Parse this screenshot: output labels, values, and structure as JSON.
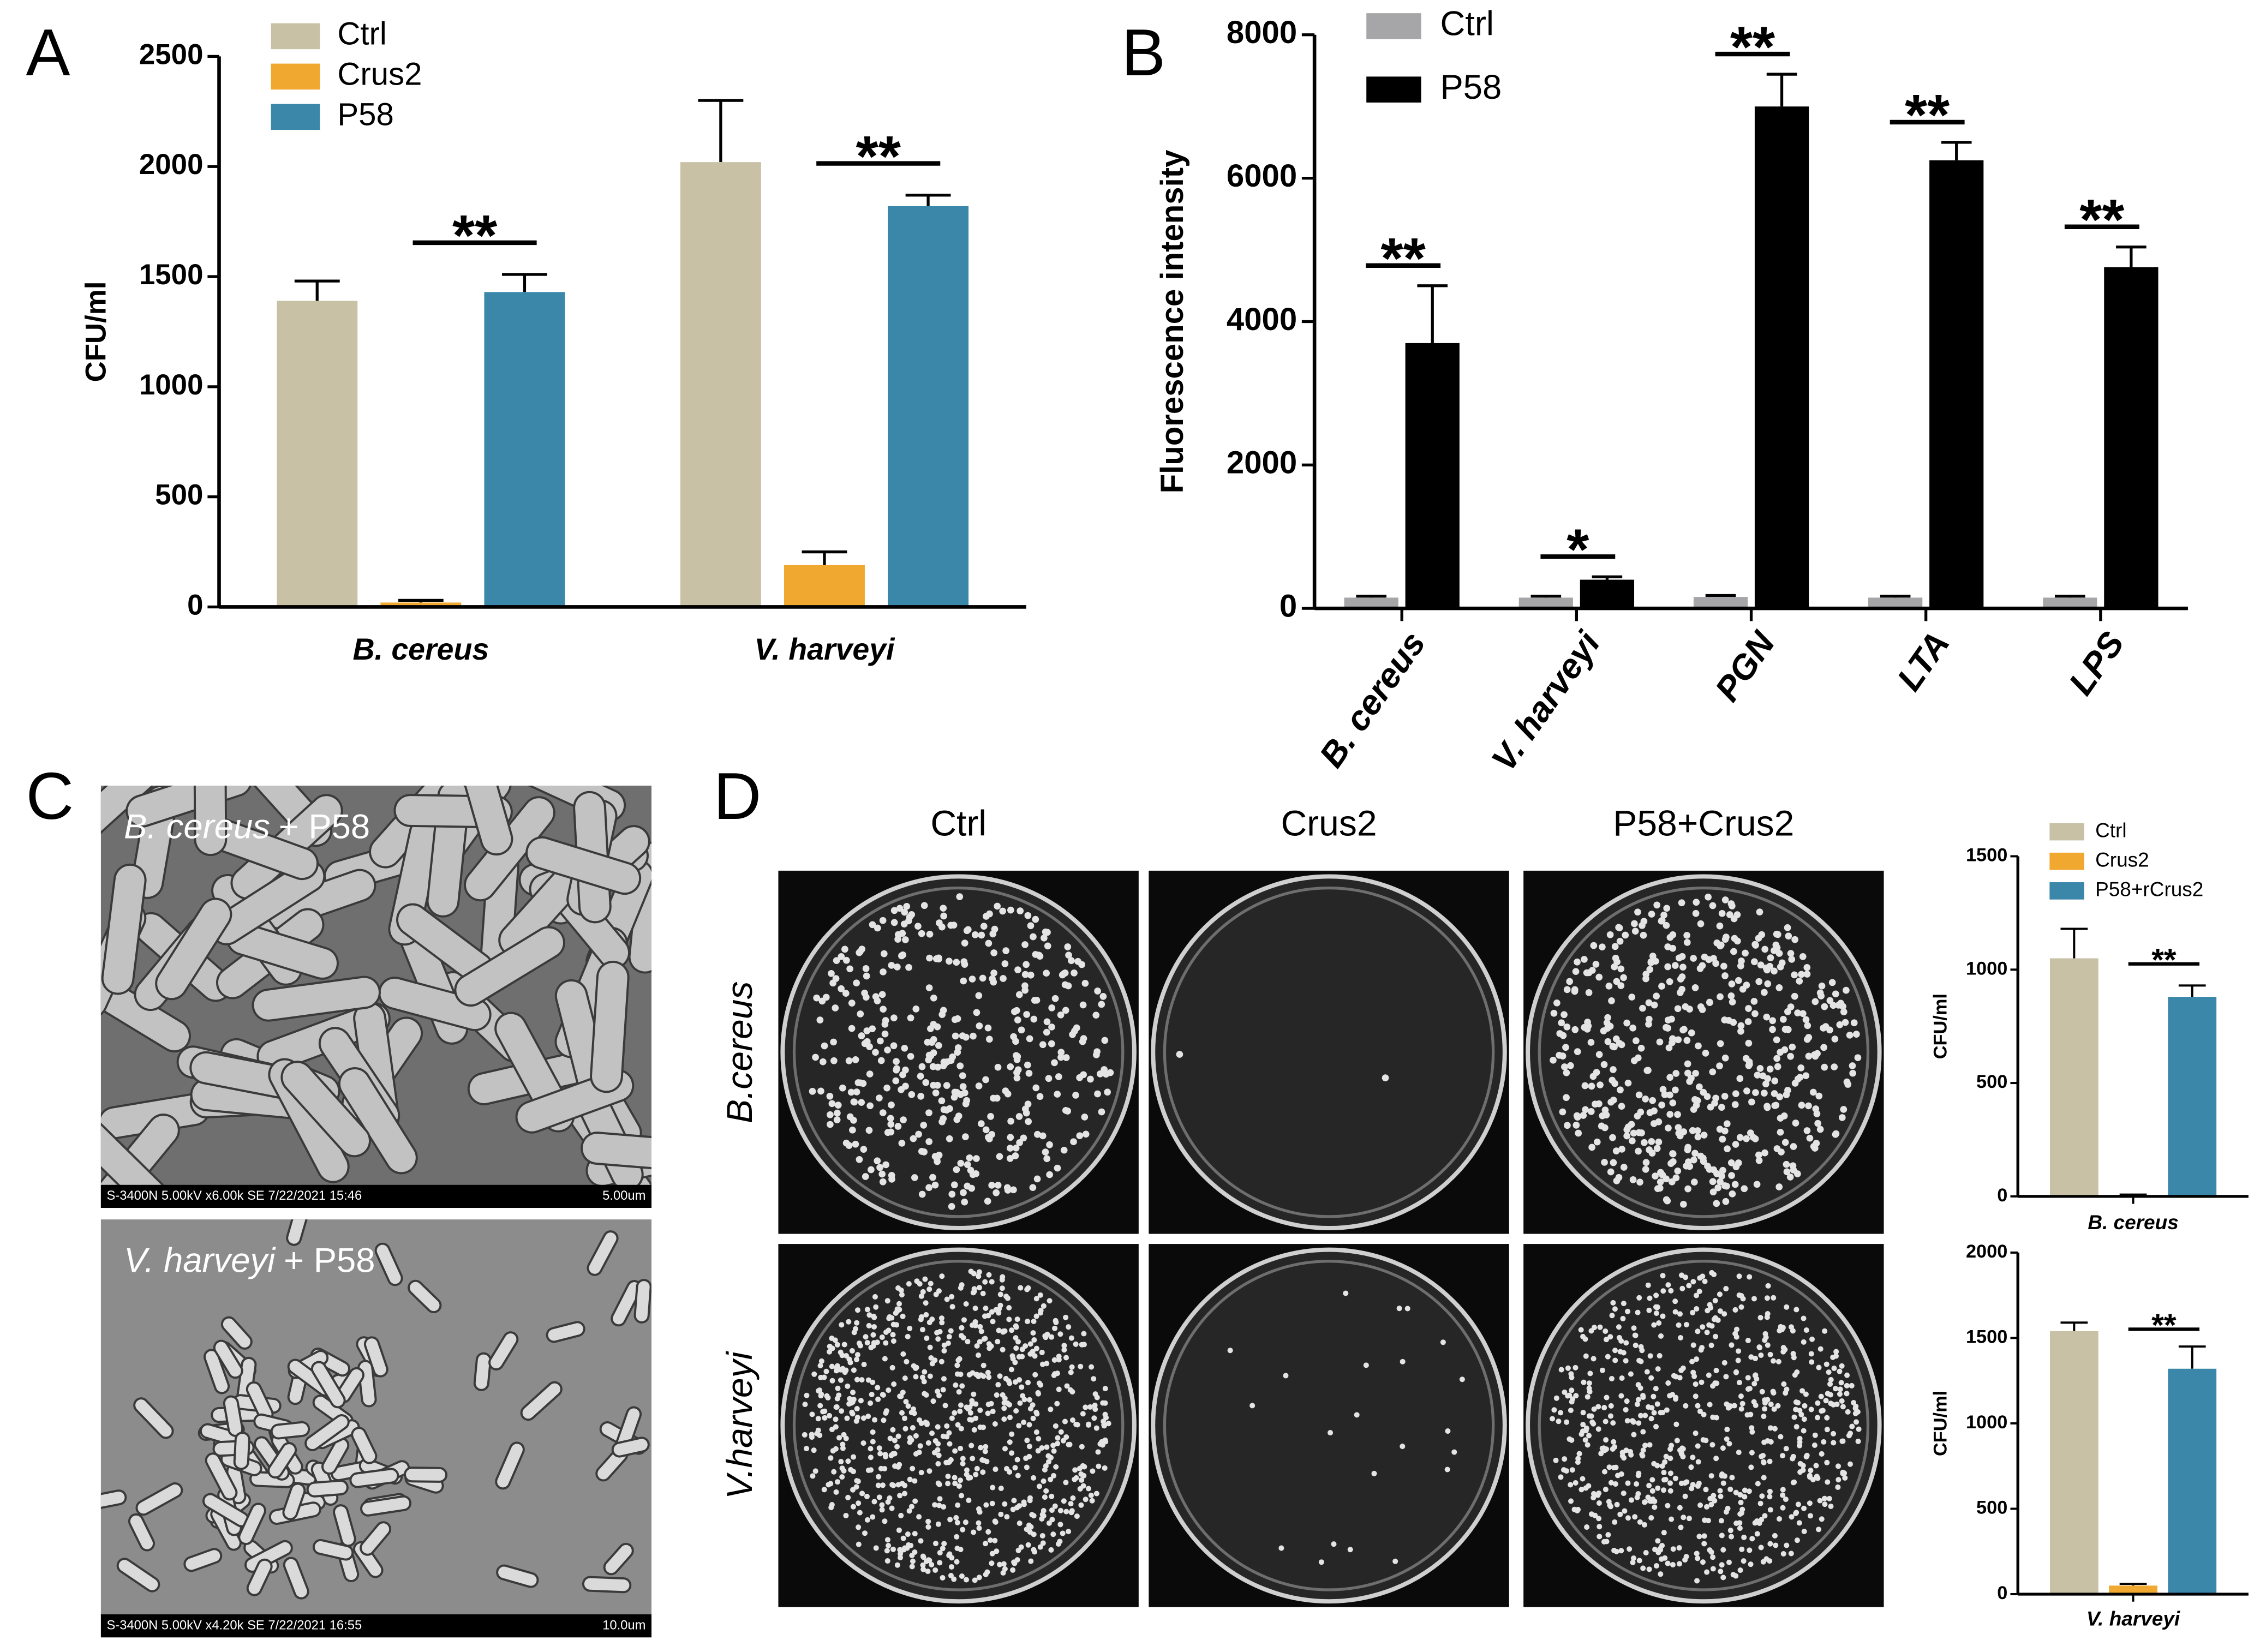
{
  "panel_labels": [
    "A",
    "B",
    "C",
    "D"
  ],
  "chart_data": [
    {
      "type": "bar",
      "ylabel": "CFU/ml",
      "categories": [
        "B. cereus",
        "V. harveyi"
      ],
      "series": [
        {
          "name": "Ctrl",
          "color": "#c9c1a6",
          "values": [
            1390,
            2020
          ],
          "errors": [
            90,
            280
          ]
        },
        {
          "name": "Crus2",
          "color": "#f0a830",
          "values": [
            20,
            190
          ],
          "errors": [
            10,
            60
          ]
        },
        {
          "name": "P58",
          "color": "#3a87aa",
          "values": [
            1430,
            1820
          ],
          "errors": [
            80,
            50
          ]
        }
      ],
      "ylim": [
        0,
        2500
      ],
      "yticks": [
        0,
        500,
        1000,
        1500,
        2000,
        2500
      ],
      "annotations": [
        "**",
        "**"
      ]
    },
    {
      "type": "bar",
      "ylabel": "Fluorescence intensity",
      "categories": [
        "B. cereus",
        "V. harveyi",
        "PGN",
        "LTA",
        "LPS"
      ],
      "series": [
        {
          "name": "Ctrl",
          "color": "#a6a6a8",
          "values": [
            150,
            150,
            160,
            150,
            150
          ],
          "errors": [
            20,
            20,
            20,
            20,
            20
          ]
        },
        {
          "name": "P58",
          "color": "#000000",
          "values": [
            3700,
            400,
            7000,
            6250,
            4760
          ],
          "errors": [
            800,
            40,
            450,
            250,
            280
          ]
        }
      ],
      "ylim": [
        0,
        8000
      ],
      "yticks": [
        0,
        2000,
        4000,
        6000,
        8000
      ],
      "annotations": [
        "**",
        "*",
        "**",
        "**",
        "**"
      ]
    },
    {
      "type": "bar",
      "ylabel": "CFU/ml",
      "categories": [
        "B. cereus"
      ],
      "series": [
        {
          "name": "Ctrl",
          "color": "#c9c1a6",
          "values": [
            1050
          ],
          "errors": [
            130
          ]
        },
        {
          "name": "Crus2",
          "color": "#f0a830",
          "values": [
            5
          ],
          "errors": [
            3
          ]
        },
        {
          "name": "P58+rCrus2",
          "color": "#3a87aa",
          "values": [
            880
          ],
          "errors": [
            50
          ]
        }
      ],
      "ylim": [
        0,
        1500
      ],
      "yticks": [
        0,
        500,
        1000,
        1500
      ],
      "annotations": [
        "**"
      ]
    },
    {
      "type": "bar",
      "ylabel": "CFU/ml",
      "categories": [
        "V. harveyi"
      ],
      "series": [
        {
          "color": "#c9c1a6",
          "values": [
            1540
          ],
          "errors": [
            50
          ]
        },
        {
          "color": "#f0a830",
          "values": [
            50
          ],
          "errors": [
            10
          ]
        },
        {
          "color": "#3a87aa",
          "values": [
            1320
          ],
          "errors": [
            130
          ]
        }
      ],
      "ylim": [
        0,
        2000
      ],
      "yticks": [
        0,
        500,
        1000,
        1500,
        2000
      ],
      "annotations": [
        "**"
      ]
    }
  ],
  "micrographs": [
    {
      "organism": "B. cereus",
      "treatment": "+ P58",
      "info": "S-3400N 5.00kV x6.00k SE 7/22/2021 15:46",
      "scale": "5.00um"
    },
    {
      "organism": "V. harveyi",
      "treatment": "+ P58",
      "info": "S-3400N 5.00kV x4.20k SE 7/22/2021 16:55",
      "scale": "10.0um"
    }
  ],
  "plates": {
    "columns": [
      "Ctrl",
      "Crus2",
      "P58+Crus2"
    ],
    "rows": [
      "B.cereus",
      "V.harveyi"
    ]
  }
}
